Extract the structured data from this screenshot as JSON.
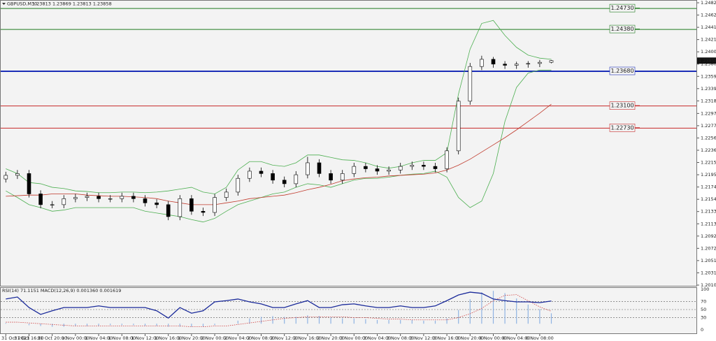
{
  "chart_data": [
    {
      "type": "candlestick",
      "title": "GBPUSD,M30",
      "quote": "1.23813 1.23869 1.23813 1.23858",
      "categories": [
        "31 Oct 2023",
        null,
        "31 Oct 16:00",
        null,
        "31 Oct 20:00",
        null,
        "1 Nov 00:00",
        null,
        "1 Nov 04:00",
        null,
        "1 Nov 08:00",
        null,
        "1 Nov 12:00",
        null,
        "1 Nov 16:00",
        null,
        "1 Nov 20:00",
        null,
        "2 Nov 00:00",
        null,
        "2 Nov 04:00",
        null,
        "2 Nov 08:00",
        null,
        "2 Nov 12:00",
        null,
        "2 Nov 16:00",
        null,
        "2 Nov 20:00",
        null,
        "3 Nov 00:00",
        null,
        "3 Nov 04:00",
        null,
        "3 Nov 08:00",
        null,
        "3 Nov 12:00",
        null,
        "3 Nov 16:00",
        null,
        "3 Nov 20:00",
        null,
        "6 Nov 00:00",
        null,
        "6 Nov 04:00",
        null,
        "6 Nov 08:00",
        null
      ],
      "open": [
        1.2188,
        1.2194,
        1.2197,
        1.2163,
        1.2145,
        1.2145,
        1.2155,
        1.2157,
        1.2159,
        1.2155,
        1.2155,
        1.2159,
        1.2155,
        1.2148,
        1.2145,
        1.2125,
        1.2155,
        1.2134,
        1.2132,
        1.2157,
        1.2166,
        1.2189,
        1.2201,
        1.2197,
        1.2186,
        1.218,
        1.2195,
        1.2215,
        1.2197,
        1.2186,
        1.2197,
        1.2209,
        1.2205,
        1.2201,
        1.2203,
        1.2209,
        1.2211,
        1.2209,
        1.2205,
        1.2235,
        1.2318,
        1.2376,
        1.2388,
        1.238,
        1.2378,
        1.238,
        1.2381,
        1.2383
      ],
      "high": [
        1.22,
        1.2203,
        1.2203,
        1.2169,
        1.2151,
        1.2161,
        1.2163,
        1.2165,
        1.2165,
        1.2161,
        1.2165,
        1.2165,
        1.2161,
        1.2154,
        1.2151,
        1.2161,
        1.2161,
        1.214,
        1.2163,
        1.2172,
        1.2195,
        1.2207,
        1.2207,
        1.2203,
        1.2192,
        1.2201,
        1.2225,
        1.2221,
        1.2203,
        1.2203,
        1.2215,
        1.2215,
        1.2211,
        1.2209,
        1.2215,
        1.2217,
        1.2217,
        1.2215,
        1.2241,
        1.2324,
        1.2382,
        1.2394,
        1.2392,
        1.2385,
        1.2384,
        1.2385,
        1.2387,
        1.23869
      ],
      "low": [
        1.2182,
        1.2188,
        1.2157,
        1.2139,
        1.2139,
        1.2139,
        1.2149,
        1.2151,
        1.2149,
        1.2149,
        1.2149,
        1.2149,
        1.2142,
        1.2139,
        1.2119,
        1.2119,
        1.2128,
        1.2126,
        1.2126,
        1.2151,
        1.216,
        1.2183,
        1.2191,
        1.218,
        1.2174,
        1.2174,
        1.2189,
        1.2191,
        1.218,
        1.218,
        1.2191,
        1.2199,
        1.2195,
        1.2195,
        1.2197,
        1.2203,
        1.2203,
        1.2199,
        1.2199,
        1.2229,
        1.2312,
        1.237,
        1.2374,
        1.2372,
        1.2372,
        1.2374,
        1.2375,
        1.23813
      ],
      "close": [
        1.2194,
        1.2197,
        1.2163,
        1.2145,
        1.2145,
        1.2155,
        1.2157,
        1.2159,
        1.2155,
        1.2155,
        1.2159,
        1.2155,
        1.2148,
        1.2145,
        1.2125,
        1.2155,
        1.2134,
        1.2132,
        1.2157,
        1.2166,
        1.2189,
        1.2201,
        1.2197,
        1.2186,
        1.218,
        1.2195,
        1.2215,
        1.2197,
        1.2186,
        1.2197,
        1.2209,
        1.2205,
        1.2201,
        1.2203,
        1.2209,
        1.2211,
        1.2209,
        1.2205,
        1.2235,
        1.2318,
        1.2376,
        1.2388,
        1.238,
        1.2378,
        1.238,
        1.2381,
        1.2383,
        1.23858
      ],
      "overlays": [
        {
          "color": "#4caf50",
          "values": [
            1.2205,
            1.2197,
            1.2182,
            1.218,
            1.2174,
            1.2172,
            1.2168,
            1.2167,
            1.2165,
            1.2165,
            1.2166,
            1.2166,
            1.2165,
            1.2166,
            1.2168,
            1.2171,
            1.2174,
            1.2166,
            1.2163,
            1.2174,
            1.2203,
            1.2217,
            1.2217,
            1.2211,
            1.2209,
            1.2215,
            1.2228,
            1.2228,
            1.2224,
            1.222,
            1.2219,
            1.2215,
            1.2209,
            1.2206,
            1.2209,
            1.2215,
            1.2219,
            1.2219,
            1.2232,
            1.233,
            1.2405,
            1.2448,
            1.2453,
            1.2428,
            1.2408,
            1.2395,
            1.239,
            1.2388
          ]
        },
        {
          "color": "#4caf50",
          "values": [
            1.2168,
            1.2157,
            1.2145,
            1.214,
            1.2134,
            1.2136,
            1.214,
            1.214,
            1.214,
            1.214,
            1.214,
            1.214,
            1.2134,
            1.2131,
            1.2128,
            1.2125,
            1.212,
            1.2116,
            1.2122,
            1.2134,
            1.2145,
            1.2151,
            1.2157,
            1.2163,
            1.2166,
            1.2174,
            1.218,
            1.2178,
            1.2174,
            1.218,
            1.2186,
            1.2189,
            1.2189,
            1.2191,
            1.2194,
            1.2196,
            1.2197,
            1.2201,
            1.2191,
            1.2157,
            1.214,
            1.2151,
            1.2197,
            1.2284,
            1.2341,
            1.2365,
            1.237,
            1.237
          ]
        },
        {
          "color": "#c0392b",
          "values": [
            1.2159,
            1.216,
            1.2161,
            1.2161,
            1.2163,
            1.2163,
            1.2163,
            1.2161,
            1.216,
            1.2159,
            1.2159,
            1.2158,
            1.2157,
            1.2155,
            1.2151,
            1.2148,
            1.2145,
            1.2145,
            1.2145,
            1.2148,
            1.2151,
            1.2155,
            1.2157,
            1.2159,
            1.2161,
            1.2165,
            1.217,
            1.2174,
            1.2179,
            1.2185,
            1.2188,
            1.219,
            1.2191,
            1.2193,
            1.2194,
            1.2195,
            1.2196,
            1.2198,
            1.2203,
            1.2211,
            1.2221,
            1.2233,
            1.2245,
            1.2257,
            1.227,
            1.2284,
            1.2298,
            1.2313
          ]
        }
      ],
      "levels": [
        {
          "value": 1.2473,
          "label": "1.24730",
          "color": "#1e7b1e",
          "thick": false
        },
        {
          "value": 1.2438,
          "label": "1.24380",
          "color": "#1e7b1e",
          "thick": false
        },
        {
          "value": 1.2368,
          "label": "1.23680",
          "color": "#1c2fb8",
          "thick": true
        },
        {
          "value": 1.231,
          "label": "1.23100",
          "color": "#c62828",
          "thick": false
        },
        {
          "value": 1.2273,
          "label": "1.22730",
          "color": "#c62828",
          "thick": false
        }
      ],
      "last_price": 1.23858,
      "ylim": [
        1.20105,
        1.24825
      ],
      "yticks": [
        1.24825,
        {
          "value": 1.2462,
          "label": "1.24620"
        },
        1.24415,
        {
          "value": 1.2421,
          "label": "1.24210"
        },
        1.24005,
        {
          "value": 1.238,
          "label": "1.23800"
        },
        1.23595,
        {
          "value": 1.2339,
          "label": "1.23390"
        },
        1.23185,
        1.22975,
        {
          "value": 1.2277,
          "label": "1.22770"
        },
        1.22565,
        {
          "value": 1.2236,
          "label": "1.22360"
        },
        1.22155,
        {
          "value": 1.2195,
          "label": "1.21950"
        },
        1.21745,
        {
          "value": 1.2154,
          "label": "1.21540"
        },
        1.21335,
        {
          "value": 1.2113,
          "label": "1.21130"
        },
        1.20925,
        {
          "value": 1.2072,
          "label": "1.20720"
        },
        1.20515,
        {
          "value": 1.2031,
          "label": "1.20310"
        },
        1.20105
      ]
    },
    {
      "type": "oscillator",
      "label": "RSI(14) 71.1151  MACD(12,26,9) 0.001360 0.001619",
      "ylim": [
        0,
        100
      ],
      "yticks": [
        100,
        70,
        50,
        30,
        0
      ],
      "y2lim": [
        -0.0008,
        0.0045
      ],
      "series": [
        {
          "type": "histogram",
          "axis": "y2",
          "color": "#8fb3e3",
          "values": [
            0.0001,
            0,
            -0.0002,
            -0.0003,
            -0.0004,
            -0.0004,
            -0.0003,
            -0.0003,
            -0.0003,
            -0.0002,
            -0.0002,
            -0.0002,
            -0.0003,
            -0.0003,
            -0.0004,
            -0.0004,
            -0.0004,
            -0.0004,
            -0.0002,
            0,
            0.0004,
            0.0007,
            0.0009,
            0.001,
            0.0009,
            0.0009,
            0.0011,
            0.001,
            0.0008,
            0.0007,
            0.0007,
            0.0006,
            0.0005,
            0.0005,
            0.0005,
            0.0005,
            0.0004,
            0.0004,
            0.0007,
            0.0018,
            0.0032,
            0.0041,
            0.0043,
            0.004,
            0.0033,
            0.0025,
            0.0019,
            0.00136
          ]
        },
        {
          "type": "line",
          "axis": "y2",
          "dotted": true,
          "color": "#d04040",
          "values": [
            0.0002,
            0.0002,
            0.0001,
            0,
            -0.0001,
            -0.0002,
            -0.0003,
            -0.0003,
            -0.0003,
            -0.0003,
            -0.0003,
            -0.0003,
            -0.0003,
            -0.0003,
            -0.0003,
            -0.0003,
            -0.0004,
            -0.0004,
            -0.0003,
            -0.0003,
            -0.0001,
            0.0001,
            0.0003,
            0.0005,
            0.0007,
            0.0008,
            0.0009,
            0.0009,
            0.0009,
            0.0009,
            0.0008,
            0.0008,
            0.0007,
            0.0006,
            0.0006,
            0.0005,
            0.0005,
            0.0005,
            0.0005,
            0.0008,
            0.0013,
            0.002,
            0.003,
            0.0037,
            0.0038,
            0.003,
            0.0022,
            0.001619
          ]
        },
        {
          "type": "line",
          "axis": "y",
          "dotted": false,
          "color": "#1a2a9a",
          "values": [
            76,
            81,
            55,
            38,
            47,
            55,
            55,
            55,
            59,
            55,
            55,
            55,
            55,
            47,
            29,
            55,
            41,
            47,
            69,
            72,
            76,
            69,
            64,
            55,
            55,
            64,
            72,
            55,
            55,
            62,
            64,
            59,
            55,
            55,
            59,
            55,
            55,
            59,
            72,
            86,
            93,
            90,
            76,
            72,
            69,
            69,
            67,
            71.1151
          ]
        }
      ]
    }
  ]
}
